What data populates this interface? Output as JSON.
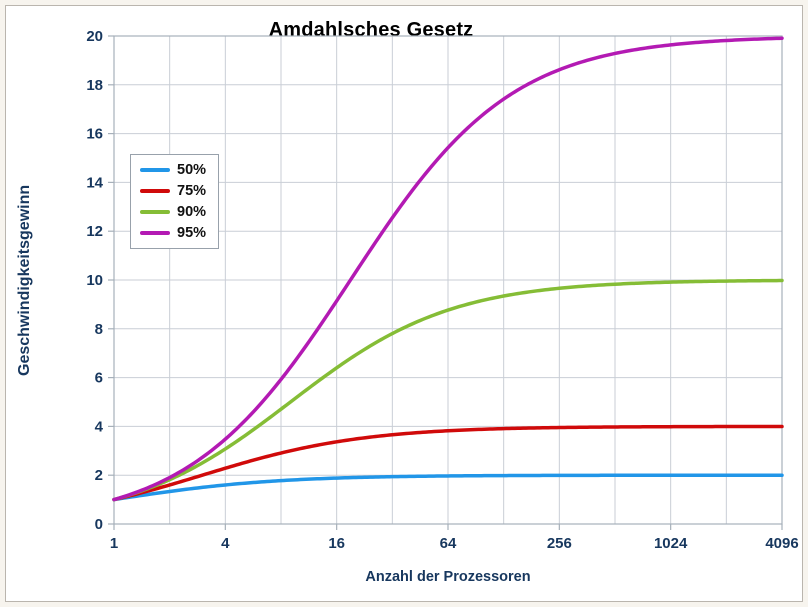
{
  "window": {
    "outer_background": "#f7f4ee",
    "panel_border": "#bab5ae",
    "panel_background": "#ffffff"
  },
  "chart_data": {
    "type": "line",
    "title": "Amdahlsches Gesetz",
    "xlabel": "Anzahl der Prozessoren",
    "ylabel": "Geschwindigkeitsgewinn",
    "x_scale": "log2",
    "x_range": [
      1,
      4096
    ],
    "x_ticks": [
      "1",
      "4",
      "16",
      "64",
      "256",
      "1024",
      "4096"
    ],
    "x_tick_values": [
      1,
      4,
      16,
      64,
      256,
      1024,
      4096
    ],
    "x_gridline_values": [
      2,
      4,
      8,
      16,
      32,
      64,
      128,
      256,
      512,
      1024,
      2048,
      4096
    ],
    "ylim": [
      0,
      20
    ],
    "y_ticks": [
      0,
      2,
      4,
      6,
      8,
      10,
      12,
      14,
      16,
      18,
      20
    ],
    "grid": true,
    "legend_position": "inside-upper-left",
    "x": [
      1,
      2,
      4,
      8,
      16,
      32,
      64,
      128,
      256,
      512,
      1024,
      2048,
      4096
    ],
    "series": [
      {
        "name": "50%",
        "parallel_fraction": 0.5,
        "color": "#2196E8",
        "values": [
          1,
          1.33,
          1.6,
          1.78,
          1.88,
          1.94,
          1.97,
          1.98,
          1.99,
          2.0,
          2.0,
          2.0,
          2.0
        ]
      },
      {
        "name": "75%",
        "parallel_fraction": 0.75,
        "color": "#D00A0A",
        "values": [
          1,
          1.6,
          2.29,
          2.91,
          3.37,
          3.66,
          3.82,
          3.91,
          3.95,
          3.98,
          3.99,
          3.99,
          4.0
        ]
      },
      {
        "name": "90%",
        "parallel_fraction": 0.9,
        "color": "#85BD36",
        "values": [
          1,
          1.82,
          3.08,
          4.71,
          6.4,
          7.8,
          8.77,
          9.34,
          9.66,
          9.83,
          9.91,
          9.96,
          9.98
        ]
      },
      {
        "name": "95%",
        "parallel_fraction": 0.95,
        "color": "#B31AB3",
        "values": [
          1,
          1.9,
          3.48,
          5.93,
          9.14,
          12.55,
          15.42,
          17.42,
          18.62,
          19.28,
          19.64,
          19.82,
          19.91
        ]
      }
    ],
    "styles": {
      "grid_color": "#c9ced6",
      "axis_color": "#a6b0ba",
      "tick_label_color": "#17375E",
      "title_color": "#000000",
      "line_width": 3.5
    }
  }
}
